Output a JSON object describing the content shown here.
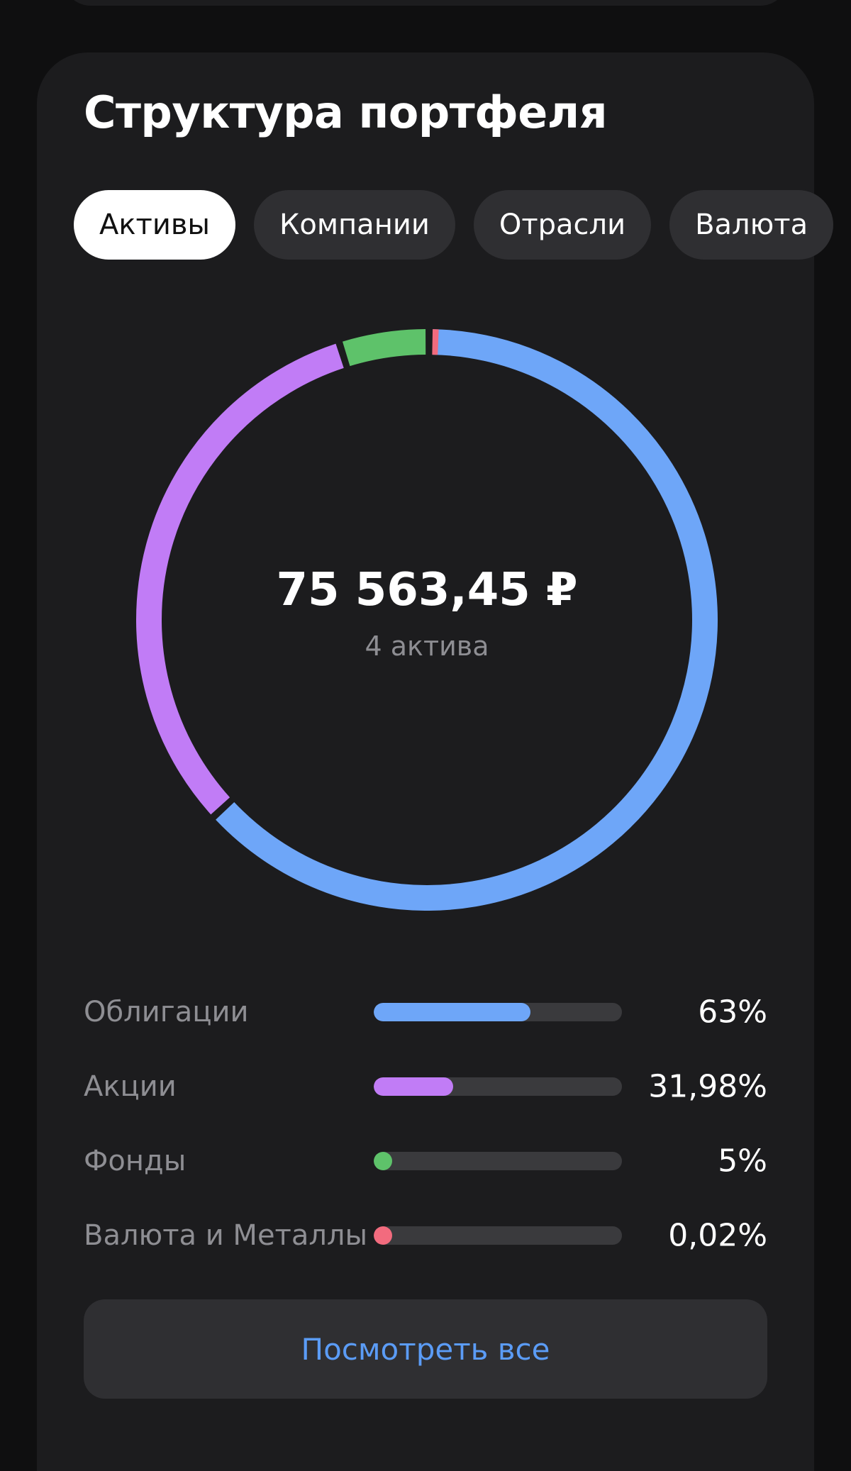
{
  "portfolio": {
    "title": "Структура портфеля",
    "tabs": [
      {
        "label": "Активы",
        "active": true
      },
      {
        "label": "Компании",
        "active": false
      },
      {
        "label": "Отрасли",
        "active": false
      },
      {
        "label": "Валюта",
        "active": false
      }
    ],
    "total": "75 563,45 ₽",
    "asset_count": "4 актива",
    "view_all_label": "Посмотреть все",
    "items": [
      {
        "label": "Облигации",
        "value": "63%",
        "percent": 63,
        "color": "#6ea6f8"
      },
      {
        "label": "Акции",
        "value": "31,98%",
        "percent": 31.98,
        "color": "#c17cf6"
      },
      {
        "label": "Фонды",
        "value": "5%",
        "percent": 5,
        "color": "#5ec26a"
      },
      {
        "label": "Валюта и Металлы",
        "value": "0,02%",
        "percent": 0.02,
        "color": "#f26b7e"
      }
    ]
  },
  "chart_data": {
    "type": "pie",
    "categories": [
      "Облигации",
      "Акции",
      "Фонды",
      "Валюта и Металлы"
    ],
    "values": [
      63,
      31.98,
      5,
      0.02
    ],
    "colors": [
      "#6ea6f8",
      "#c17cf6",
      "#5ec26a",
      "#f26b7e"
    ]
  }
}
